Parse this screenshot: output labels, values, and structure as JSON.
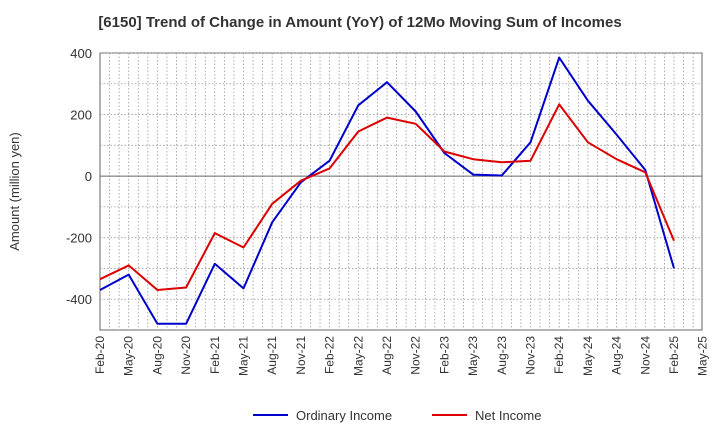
{
  "chart_data": {
    "type": "line",
    "title": "[6150]  Trend of Change in Amount (YoY) of 12Mo Moving Sum of Incomes",
    "xlabel": "",
    "ylabel": "Amount (million yen)",
    "ylim": [
      -500,
      400
    ],
    "yticks": [
      -400,
      -200,
      0,
      200,
      400
    ],
    "grid": true,
    "legend_position": "bottom",
    "x": [
      "Feb-20",
      "May-20",
      "Aug-20",
      "Nov-20",
      "Feb-21",
      "May-21",
      "Aug-21",
      "Nov-21",
      "Feb-22",
      "May-22",
      "Aug-22",
      "Nov-22",
      "Feb-23",
      "May-23",
      "Aug-23",
      "Nov-23",
      "Feb-24",
      "May-24",
      "Aug-24",
      "Nov-24",
      "Feb-25",
      "May-25"
    ],
    "series": [
      {
        "name": "Ordinary Income",
        "color": "#0000cc",
        "values": [
          -370,
          -320,
          -480,
          -480,
          -285,
          -365,
          -150,
          -20,
          50,
          230,
          305,
          210,
          75,
          5,
          2,
          110,
          385,
          245,
          135,
          20,
          -300,
          null
        ]
      },
      {
        "name": "Net Income",
        "color": "#dd0000",
        "values": [
          -335,
          -290,
          -370,
          -362,
          -185,
          -232,
          -90,
          -15,
          25,
          145,
          190,
          170,
          80,
          55,
          45,
          50,
          233,
          110,
          55,
          12,
          -210,
          null
        ]
      }
    ]
  }
}
